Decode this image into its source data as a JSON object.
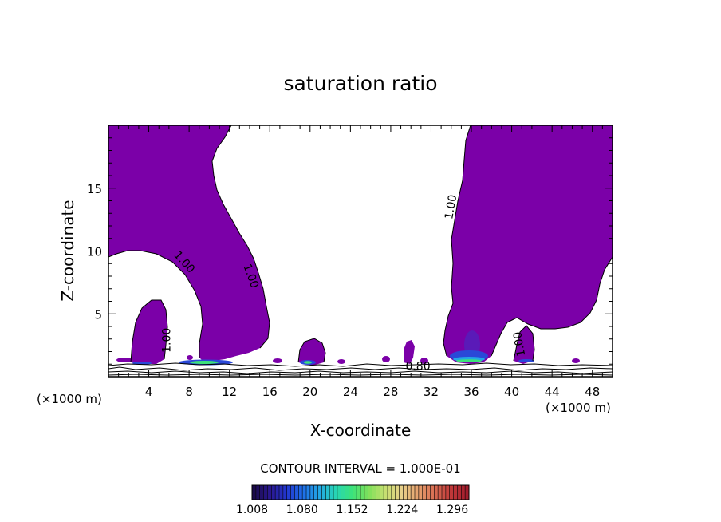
{
  "chart_data": {
    "type": "heatmap",
    "title": "saturation ratio",
    "xlabel": "X-coordinate",
    "ylabel": "Z-coordinate",
    "x_unit": "(×1000 m)",
    "z_unit": "(×1000 m)",
    "xlim": [
      0,
      50
    ],
    "ylim": [
      0,
      20
    ],
    "x_ticks": [
      4,
      8,
      12,
      16,
      20,
      24,
      28,
      32,
      36,
      40,
      44,
      48
    ],
    "y_ticks": [
      5,
      10,
      15
    ],
    "contour_labels": [
      {
        "text": "1.00",
        "x": 7.5,
        "z": 9.1,
        "angle": 48
      },
      {
        "text": "1.00",
        "x": 14.1,
        "z": 8.0,
        "angle": 70
      },
      {
        "text": "1.00",
        "x": 5.8,
        "z": 2.9,
        "angle": -90
      },
      {
        "text": "1.00",
        "x": 34.0,
        "z": 13.5,
        "angle": -80
      },
      {
        "text": "1.00",
        "x": 40.8,
        "z": 2.6,
        "angle": -100
      },
      {
        "text": "0.80",
        "x": 30.7,
        "z": 0.8,
        "angle": 0
      }
    ],
    "contour_interval_text": "CONTOUR INTERVAL = 1.000E-01",
    "colorbar": {
      "min": 1.008,
      "max": 1.32,
      "tick_labels": [
        "1.008",
        "1.080",
        "1.152",
        "1.224",
        "1.296"
      ],
      "colors": [
        "#1a0a4a",
        "#2a1890",
        "#2236d0",
        "#1e6ee8",
        "#23a6e6",
        "#27d6b4",
        "#3ce27a",
        "#7fe05a",
        "#c6e070",
        "#e8d08a",
        "#e6a26e",
        "#d86c52",
        "#c23a3a",
        "#a01c2c"
      ]
    },
    "regions": [
      {
        "name": "supersaturated-region-left",
        "color": "#7b00a8"
      },
      {
        "name": "supersaturated-region-right",
        "color": "#7b00a8"
      }
    ],
    "grid": false
  }
}
